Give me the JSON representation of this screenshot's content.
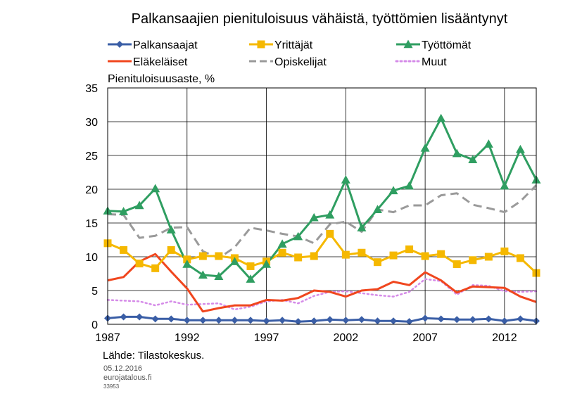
{
  "colors": {
    "palkansaajat": "#3a5ea6",
    "yrittajat": "#f5b800",
    "tyottomat": "#2f9e61",
    "elakelaiset": "#f0461e",
    "opiskelijat": "#9a9a9a",
    "muut": "#d58be8",
    "grid": "#000000"
  },
  "footer": {
    "source": "Lähde: Tilastokeskus.",
    "date": "05.12.2016",
    "site": "eurojatalous.fi",
    "code": "33953"
  },
  "chart_data": {
    "type": "line",
    "title": "Palkansaajien pienituloisuus vähäistä, työttömien lisääntynyt",
    "ylabel": "Pienituloisuusaste, %",
    "xlabel": "",
    "ylim": [
      0,
      35
    ],
    "yticks": [
      0,
      5,
      10,
      15,
      20,
      25,
      30,
      35
    ],
    "xlim": [
      1987,
      2014
    ],
    "xticks": [
      1987,
      1992,
      1997,
      2002,
      2007,
      2012
    ],
    "grid": true,
    "legend_position": "top",
    "x": [
      1987,
      1988,
      1989,
      1990,
      1991,
      1992,
      1993,
      1994,
      1995,
      1996,
      1997,
      1998,
      1999,
      2000,
      2001,
      2002,
      2003,
      2004,
      2005,
      2006,
      2007,
      2008,
      2009,
      2010,
      2011,
      2012,
      2013,
      2014
    ],
    "series": [
      {
        "name": "Palkansaajat",
        "key": "palkansaajat",
        "marker": "diamond",
        "dash": "",
        "values": [
          0.9,
          1.1,
          1.1,
          0.8,
          0.8,
          0.6,
          0.6,
          0.6,
          0.6,
          0.6,
          0.5,
          0.6,
          0.4,
          0.5,
          0.7,
          0.6,
          0.7,
          0.5,
          0.5,
          0.4,
          0.9,
          0.8,
          0.7,
          0.7,
          0.8,
          0.5,
          0.8,
          0.5
        ]
      },
      {
        "name": "Yrittäjät",
        "key": "yrittajat",
        "marker": "square",
        "dash": "",
        "values": [
          12.0,
          11.0,
          9.0,
          8.3,
          11.0,
          9.6,
          10.1,
          10.1,
          9.8,
          8.6,
          9.3,
          10.6,
          9.9,
          10.1,
          13.4,
          10.3,
          10.6,
          9.2,
          10.2,
          11.1,
          10.1,
          10.4,
          8.9,
          9.5,
          10.0,
          10.8,
          9.8,
          7.6
        ]
      },
      {
        "name": "Työttömät",
        "key": "tyottomat",
        "marker": "triangle",
        "dash": "",
        "values": [
          16.8,
          16.7,
          17.6,
          20.1,
          14.0,
          8.9,
          7.3,
          7.1,
          9.3,
          6.7,
          8.9,
          11.9,
          13.0,
          15.8,
          16.2,
          21.4,
          14.3,
          17.0,
          19.8,
          20.5,
          26.1,
          30.5,
          25.3,
          24.4,
          26.7,
          20.5,
          25.9,
          21.4
        ]
      },
      {
        "name": "Eläkeläiset",
        "key": "elakelaiset",
        "marker": "none",
        "dash": "",
        "values": [
          6.5,
          7.0,
          9.3,
          10.4,
          7.8,
          5.3,
          1.9,
          2.4,
          2.8,
          2.8,
          3.6,
          3.5,
          3.9,
          5.0,
          4.8,
          4.1,
          5.0,
          5.2,
          6.3,
          5.8,
          7.7,
          6.5,
          4.7,
          5.6,
          5.5,
          5.4,
          4.1,
          3.3
        ]
      },
      {
        "name": "Opiskelijat",
        "key": "opiskelijat",
        "marker": "none",
        "dash": "12,7",
        "values": [
          16.3,
          16.2,
          12.8,
          13.1,
          14.3,
          14.4,
          10.8,
          9.8,
          11.4,
          14.3,
          13.9,
          13.4,
          13.0,
          12.0,
          14.8,
          15.2,
          13.7,
          17.0,
          16.6,
          17.6,
          17.6,
          19.1,
          19.4,
          17.7,
          17.2,
          16.6,
          18.2,
          20.6
        ]
      },
      {
        "name": "Muut",
        "key": "muut",
        "marker": "none",
        "dash": "2,4",
        "values": [
          3.6,
          3.5,
          3.4,
          2.8,
          3.4,
          2.9,
          3.0,
          3.1,
          2.2,
          2.6,
          3.4,
          3.6,
          3.1,
          4.2,
          4.8,
          4.9,
          4.6,
          4.3,
          4.1,
          4.8,
          6.7,
          6.4,
          4.4,
          5.8,
          5.7,
          4.9,
          4.8,
          4.9
        ]
      }
    ]
  }
}
